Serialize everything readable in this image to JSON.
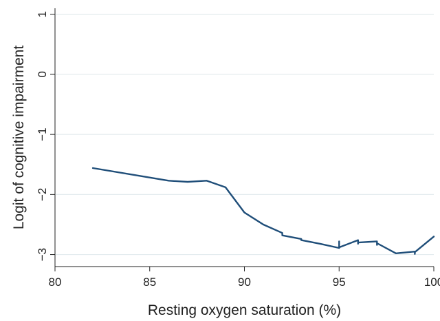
{
  "chart_data": {
    "type": "line",
    "title": "",
    "xlabel": "Resting oxygen saturation (%)",
    "ylabel": "Logit of cognitive impairment",
    "xlim": [
      80,
      100
    ],
    "ylim": [
      -3.2,
      1.1
    ],
    "x_ticks": [
      80,
      85,
      90,
      95,
      100
    ],
    "x_tick_labels": [
      "80",
      "85",
      "90",
      "95",
      "100"
    ],
    "y_ticks": [
      -3,
      -2,
      -1,
      0,
      1
    ],
    "y_tick_labels": [
      "−3",
      "−2",
      "−1",
      "0",
      "1"
    ],
    "grid": "horizontal",
    "colors": {
      "line": "#1f4e79",
      "grid": "#e3ebee",
      "axis": "#222222"
    },
    "series": [
      {
        "x": [
          82,
          86,
          87,
          88,
          89,
          90,
          91,
          92,
          92,
          93,
          93,
          94,
          95,
          95,
          95,
          96,
          96,
          96,
          97,
          97,
          97,
          98,
          99,
          99,
          99,
          100
        ],
        "y": [
          -1.56,
          -1.77,
          -1.79,
          -1.77,
          -1.88,
          -2.3,
          -2.5,
          -2.64,
          -2.68,
          -2.74,
          -2.76,
          -2.82,
          -2.89,
          -2.78,
          -2.88,
          -2.76,
          -2.82,
          -2.8,
          -2.78,
          -2.84,
          -2.81,
          -2.98,
          -2.95,
          -2.99,
          -2.96,
          -2.7
        ]
      }
    ]
  }
}
